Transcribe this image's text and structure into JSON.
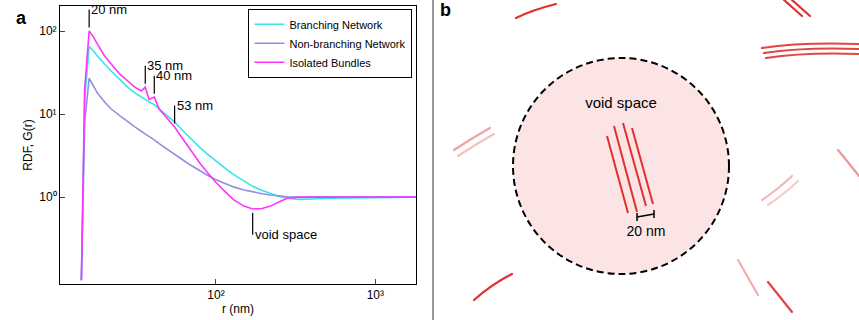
{
  "chart_data": {
    "type": "line",
    "panel_label": "a",
    "xlabel": "r (nm)",
    "ylabel": "RDF, G(r)",
    "log": true,
    "xlim": [
      10.5,
      1800
    ],
    "ylim": [
      0.09,
      200
    ],
    "xticks": [
      {
        "value": 100,
        "label": "10²"
      },
      {
        "value": 1000,
        "label": "10³"
      }
    ],
    "yticks": [
      {
        "value": 1,
        "label": "10⁰"
      },
      {
        "value": 10,
        "label": "10¹"
      },
      {
        "value": 100,
        "label": "10²"
      }
    ],
    "legend": "upper right",
    "x": [
      14.3,
      15,
      16,
      17,
      18,
      20,
      22,
      25,
      28,
      31,
      34,
      36,
      38,
      41,
      44,
      48,
      55,
      62,
      70,
      80,
      90,
      100,
      115,
      130,
      150,
      170,
      195,
      220,
      250,
      280,
      330,
      400,
      500,
      700,
      1000,
      1400,
      1800
    ],
    "series": [
      {
        "name": "Branching Network",
        "color": "#33e6e6",
        "values": [
          0.1,
          15,
          65,
          58,
          50,
          40,
          33,
          26,
          21,
          18,
          16,
          15,
          14,
          13,
          11.5,
          10,
          8,
          6.3,
          5.0,
          3.9,
          3.2,
          2.7,
          2.2,
          1.85,
          1.55,
          1.35,
          1.2,
          1.1,
          1.02,
          0.97,
          0.94,
          0.95,
          0.97,
          0.98,
          0.99,
          1.0,
          1.0
        ]
      },
      {
        "name": "Non-branching Network",
        "color": "#8f8fe6",
        "values": [
          0.1,
          8,
          27,
          22,
          18,
          14,
          11.5,
          9.5,
          8,
          7,
          6.2,
          5.8,
          5.4,
          4.9,
          4.4,
          3.9,
          3.3,
          2.8,
          2.4,
          2.05,
          1.8,
          1.62,
          1.45,
          1.32,
          1.22,
          1.15,
          1.1,
          1.06,
          1.03,
          1.01,
          1.0,
          1.0,
          1.0,
          1.0,
          1.0,
          1.0,
          1.0
        ]
      },
      {
        "name": "Isolated Bundles",
        "color": "#ff33ff",
        "values": [
          0.1,
          20,
          100,
          85,
          70,
          50,
          40,
          30,
          25,
          21,
          19,
          21,
          15,
          16,
          11.5,
          9.5,
          7.0,
          5.0,
          3.6,
          2.5,
          1.9,
          1.5,
          1.15,
          0.92,
          0.78,
          0.72,
          0.73,
          0.78,
          0.88,
          0.97,
          1.0,
          1.0,
          1.0,
          1.0,
          1.0,
          1.0,
          1.0
        ]
      }
    ],
    "annotations": [
      {
        "text": "20 nm",
        "x": 16,
        "y": 100
      },
      {
        "text": "35 nm",
        "x": 36,
        "y": 21
      },
      {
        "text": "40 nm",
        "x": 41,
        "y": 16
      },
      {
        "text": "53 nm",
        "x": 55,
        "y": 7.0
      },
      {
        "text": "void space",
        "x": 170,
        "y": 0.72
      }
    ]
  },
  "diagram": {
    "panel_label": "b",
    "circle_label": "void space",
    "scale_label": "20 nm"
  }
}
